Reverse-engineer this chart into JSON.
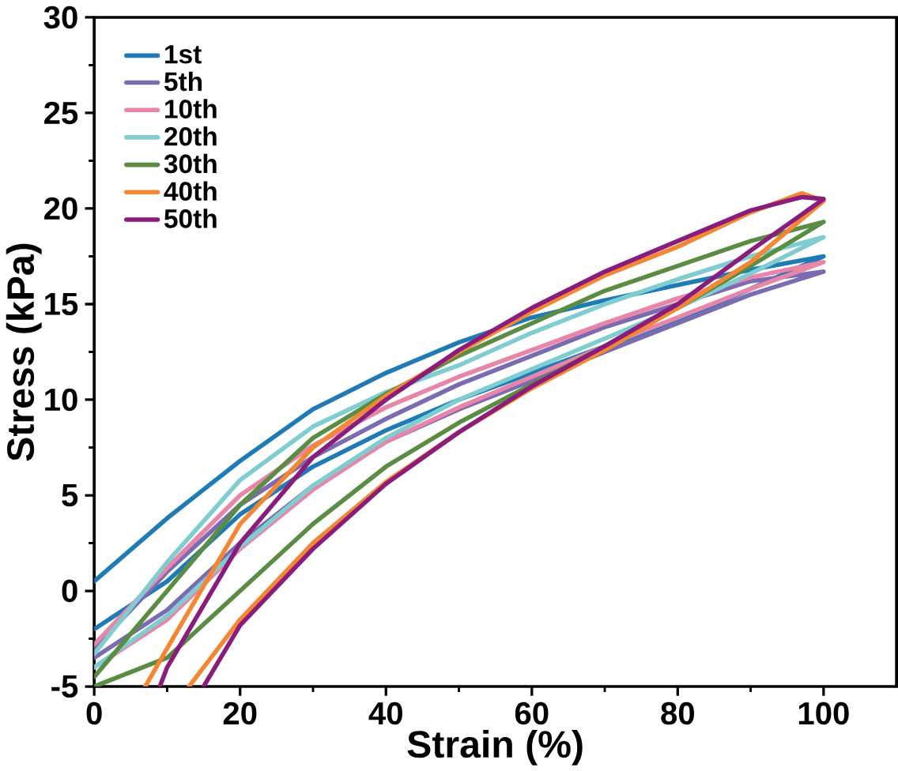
{
  "chart_data": {
    "type": "line",
    "xlabel": "Strain (%)",
    "ylabel": "Stress (kPa)",
    "xlim": [
      0,
      110
    ],
    "ylim": [
      -5,
      30
    ],
    "xticks": [
      0,
      20,
      40,
      60,
      80,
      100
    ],
    "yticks": [
      -5,
      0,
      5,
      10,
      15,
      20,
      25,
      30
    ],
    "legend": "top left",
    "marker": "none",
    "series": [
      {
        "name": "1st",
        "color": "#1f7bb5",
        "x": [
          0,
          10,
          20,
          30,
          40,
          50,
          60,
          70,
          80,
          90,
          100,
          90,
          80,
          70,
          60,
          50,
          40,
          30,
          20,
          10,
          0
        ],
        "values": [
          -2.0,
          0.5,
          4.0,
          6.5,
          8.4,
          10,
          11.4,
          12.8,
          14.1,
          15.8,
          17.5,
          16.8,
          16.0,
          15.2,
          14.3,
          13.0,
          11.4,
          9.5,
          6.8,
          3.8,
          0.5
        ]
      },
      {
        "name": "5th",
        "color": "#7b6bb0",
        "x": [
          0,
          10,
          20,
          30,
          40,
          50,
          60,
          70,
          80,
          90,
          100,
          90,
          80,
          70,
          60,
          50,
          40,
          30,
          20,
          10,
          0
        ],
        "values": [
          -3.5,
          -1.0,
          2.5,
          5.5,
          7.8,
          9.5,
          11.0,
          12.5,
          14.0,
          15.5,
          16.7,
          16.2,
          15.0,
          13.8,
          12.3,
          10.8,
          9.0,
          7.0,
          4.5,
          1.0,
          -3.0
        ]
      },
      {
        "name": "10th",
        "color": "#e885a8",
        "x": [
          0,
          10,
          20,
          30,
          40,
          50,
          60,
          70,
          80,
          90,
          100,
          90,
          80,
          70,
          60,
          50,
          40,
          30,
          20,
          10,
          0
        ],
        "values": [
          -4.0,
          -1.5,
          2.2,
          5.3,
          7.8,
          9.6,
          11.2,
          12.8,
          14.3,
          15.8,
          17.2,
          16.4,
          15.3,
          14.0,
          12.6,
          11.2,
          9.6,
          7.6,
          5.0,
          1.2,
          -2.8
        ]
      },
      {
        "name": "20th",
        "color": "#7fcdd0",
        "x": [
          0,
          10,
          20,
          30,
          40,
          50,
          60,
          70,
          80,
          90,
          100,
          90,
          80,
          70,
          60,
          50,
          40,
          30,
          20,
          10,
          0
        ],
        "values": [
          -4.0,
          -1.3,
          2.3,
          5.5,
          8.0,
          10.0,
          11.6,
          13.2,
          14.8,
          16.6,
          18.5,
          17.5,
          16.3,
          15.0,
          13.5,
          11.8,
          10.4,
          8.6,
          5.8,
          1.5,
          -3.3
        ]
      },
      {
        "name": "30th",
        "color": "#5a8c44",
        "x": [
          0,
          10,
          20,
          30,
          40,
          50,
          60,
          70,
          80,
          90,
          100,
          90,
          80,
          70,
          60,
          50,
          40,
          30,
          20,
          10,
          0
        ],
        "values": [
          -5.0,
          -3.5,
          0,
          3.5,
          6.5,
          8.8,
          10.8,
          12.8,
          14.8,
          17.0,
          19.3,
          18.3,
          17.0,
          15.7,
          14.0,
          12.3,
          10.3,
          8.0,
          4.5,
          0,
          -4.5
        ]
      },
      {
        "name": "40th",
        "color": "#f58634",
        "x": [
          13,
          20,
          30,
          40,
          50,
          60,
          70,
          80,
          90,
          100,
          97,
          90,
          80,
          70,
          60,
          50,
          40,
          30,
          20,
          10,
          7
        ],
        "values": [
          -5.0,
          -1.5,
          2.5,
          5.7,
          8.3,
          10.6,
          12.6,
          14.8,
          17.2,
          20.4,
          20.8,
          19.8,
          18.0,
          16.5,
          14.6,
          12.5,
          10.2,
          7.5,
          3.5,
          -3.0,
          -5.0
        ]
      },
      {
        "name": "50th",
        "color": "#8a1c7c",
        "x": [
          15,
          20,
          30,
          40,
          50,
          60,
          70,
          80,
          90,
          100,
          97,
          90,
          80,
          70,
          60,
          50,
          40,
          30,
          20,
          10,
          9
        ],
        "values": [
          -5.0,
          -1.8,
          2.2,
          5.6,
          8.3,
          10.7,
          12.8,
          15.0,
          17.8,
          20.5,
          20.6,
          19.9,
          18.3,
          16.7,
          14.8,
          12.6,
          10.0,
          7.0,
          2.5,
          -4.0,
          -5.0
        ]
      }
    ]
  }
}
